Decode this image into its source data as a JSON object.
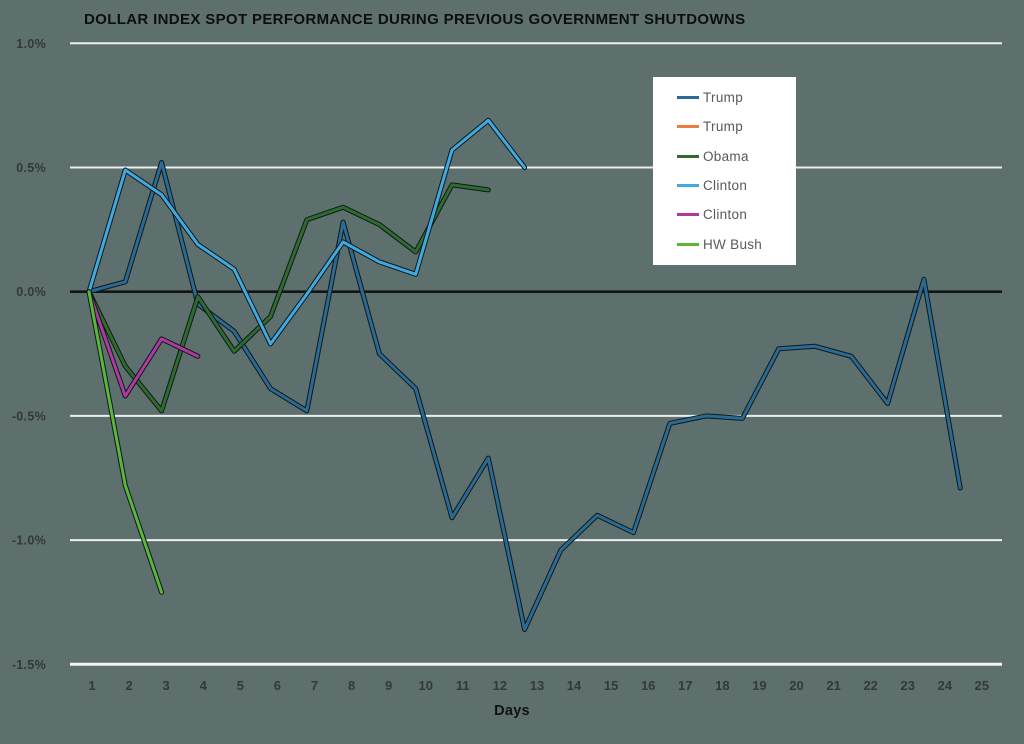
{
  "title": "DOLLAR INDEX SPOT PERFORMANCE DURING PREVIOUS GOVERNMENT SHUTDOWNS",
  "background_color": "#5d706e",
  "chart_data": {
    "type": "line",
    "title": "DOLLAR INDEX SPOT PERFORMANCE DURING PREVIOUS GOVERNMENT SHUTDOWNS",
    "xlabel": "Days",
    "ylabel": "",
    "grid": "horizontal",
    "legend_position": "upper-right-inside",
    "categories": [
      1,
      2,
      3,
      4,
      5,
      6,
      7,
      8,
      9,
      10,
      11,
      12,
      13,
      14,
      15,
      16,
      17,
      18,
      19,
      20,
      21,
      22,
      23,
      24,
      25
    ],
    "ylim": [
      -1.5,
      1.0
    ],
    "y_ticks": [
      {
        "label": "1.0%",
        "value": 1.0
      },
      {
        "label": "0.5%",
        "value": 0.5
      },
      {
        "label": "0.0%",
        "value": 0.0
      },
      {
        "label": "-0.5%",
        "value": -0.5
      },
      {
        "label": "-1.0%",
        "value": -1.0
      },
      {
        "label": "-1.5%",
        "value": -1.5
      }
    ],
    "series": [
      {
        "name": "Trump",
        "color": "#2b6a93",
        "values": [
          0.0,
          0.04,
          0.52,
          -0.05,
          -0.16,
          -0.39,
          -0.48,
          0.28,
          -0.25,
          -0.39,
          -0.91,
          -0.67,
          -1.36,
          -1.04,
          -0.9,
          -0.97,
          -0.53,
          -0.5,
          -0.51,
          -0.23,
          -0.22,
          -0.26,
          -0.45,
          0.05,
          -0.79
        ]
      },
      {
        "name": "Trump",
        "color": "#e87d3c",
        "values": [
          0.0
        ]
      },
      {
        "name": "Obama",
        "color": "#2e6b2e",
        "values": [
          0.0,
          -0.3,
          -0.48,
          -0.02,
          -0.24,
          -0.1,
          0.29,
          0.34,
          0.27,
          0.16,
          0.43,
          0.41
        ]
      },
      {
        "name": "Clinton",
        "color": "#3fa9e0",
        "values": [
          0.0,
          0.49,
          0.39,
          0.19,
          0.09,
          -0.21,
          -0.01,
          0.2,
          0.12,
          0.07,
          0.57,
          0.69,
          0.5
        ]
      },
      {
        "name": "Clinton",
        "color": "#ae3a9e",
        "values": [
          0.0,
          -0.42,
          -0.19,
          -0.26
        ]
      },
      {
        "name": "HW Bush",
        "color": "#5ab53c",
        "values": [
          0.0,
          -0.78,
          -1.21
        ]
      }
    ]
  }
}
